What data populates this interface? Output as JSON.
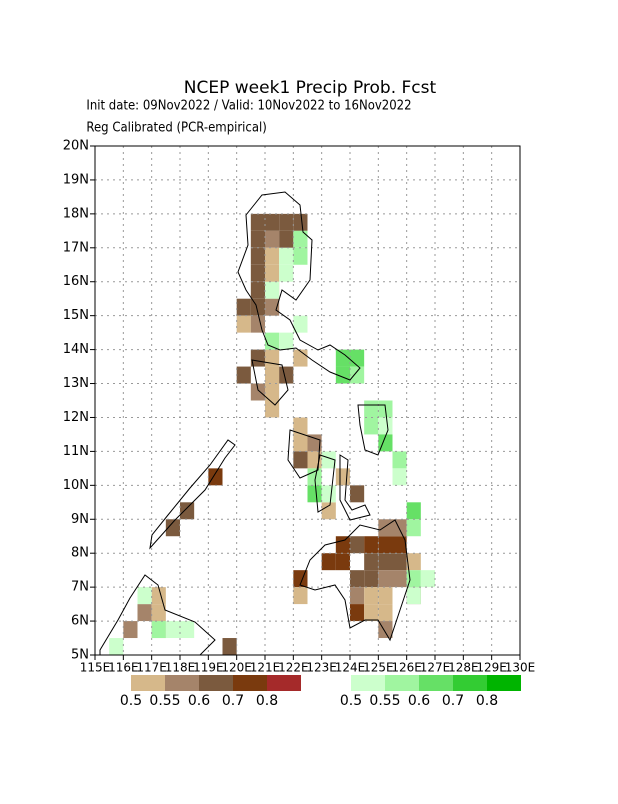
{
  "chart_data": {
    "type": "gridmap",
    "title": "NCEP week1 Precip Prob. Fcst",
    "subtitle": "Init date: 09Nov2022 / Valid: 10Nov2022 to 16Nov2022",
    "note": "Reg Calibrated (PCR-empirical)",
    "xlim": [
      115,
      130
    ],
    "ylim": [
      5,
      20
    ],
    "cell": 0.5,
    "grid": true,
    "xticks": [
      {
        "value": 115,
        "label": "115E"
      },
      {
        "value": 116,
        "label": "116E"
      },
      {
        "value": 117,
        "label": "117E"
      },
      {
        "value": 118,
        "label": "118E"
      },
      {
        "value": 119,
        "label": "119E"
      },
      {
        "value": 120,
        "label": "120E"
      },
      {
        "value": 121,
        "label": "121E"
      },
      {
        "value": 122,
        "label": "122E"
      },
      {
        "value": 123,
        "label": "123E"
      },
      {
        "value": 124,
        "label": "124E"
      },
      {
        "value": 125,
        "label": "125E"
      },
      {
        "value": 126,
        "label": "126E"
      },
      {
        "value": 127,
        "label": "127E"
      },
      {
        "value": 128,
        "label": "128E"
      },
      {
        "value": 129,
        "label": "129E"
      },
      {
        "value": 130,
        "label": "130E"
      }
    ],
    "yticks": [
      {
        "value": 5,
        "label": "5N"
      },
      {
        "value": 6,
        "label": "6N"
      },
      {
        "value": 7,
        "label": "7N"
      },
      {
        "value": 8,
        "label": "8N"
      },
      {
        "value": 9,
        "label": "9N"
      },
      {
        "value": 10,
        "label": "10N"
      },
      {
        "value": 11,
        "label": "11N"
      },
      {
        "value": 12,
        "label": "12N"
      },
      {
        "value": 13,
        "label": "13N"
      },
      {
        "value": 14,
        "label": "14N"
      },
      {
        "value": 15,
        "label": "15N"
      },
      {
        "value": 16,
        "label": "16N"
      },
      {
        "value": 17,
        "label": "17N"
      },
      {
        "value": 18,
        "label": "18N"
      },
      {
        "value": 19,
        "label": "19N"
      },
      {
        "value": 20,
        "label": "20N"
      }
    ],
    "dry": {
      "levels": [
        0.5,
        0.55,
        0.6,
        0.7,
        0.8
      ],
      "colors": [
        "#d6b88a",
        "#a5846a",
        "#7b5a3e",
        "#7a3a0e",
        "#a52a2a"
      ],
      "cells": [
        [
          120.5,
          17.5,
          0.6
        ],
        [
          121,
          17.5,
          0.6
        ],
        [
          121.5,
          17.5,
          0.6
        ],
        [
          122,
          17.5,
          0.6
        ],
        [
          120.5,
          17,
          0.6
        ],
        [
          121,
          17,
          0.55
        ],
        [
          121.5,
          17,
          0.6
        ],
        [
          120.5,
          16.5,
          0.6
        ],
        [
          121,
          16.5,
          0.5
        ],
        [
          120.5,
          16,
          0.6
        ],
        [
          121,
          16,
          0.5
        ],
        [
          120.5,
          15.5,
          0.6
        ],
        [
          121,
          15.5,
          0.5
        ],
        [
          120,
          15,
          0.6
        ],
        [
          120.5,
          15,
          0.6
        ],
        [
          121,
          15,
          0.55
        ],
        [
          120,
          14.5,
          0.5
        ],
        [
          120.5,
          14.5,
          0.55
        ],
        [
          120.5,
          13.5,
          0.6
        ],
        [
          121,
          13.5,
          0.5
        ],
        [
          122,
          13.5,
          0.5
        ],
        [
          120,
          13,
          0.6
        ],
        [
          121,
          13,
          0.5
        ],
        [
          121.5,
          13,
          0.6
        ],
        [
          120.5,
          12.5,
          0.55
        ],
        [
          121,
          12.5,
          0.5
        ],
        [
          121,
          12,
          0.5
        ],
        [
          122,
          11.5,
          0.5
        ],
        [
          122,
          11,
          0.5
        ],
        [
          122.5,
          11,
          0.55
        ],
        [
          122,
          10.5,
          0.6
        ],
        [
          122.5,
          10.5,
          0.5
        ],
        [
          123.5,
          10,
          0.5
        ],
        [
          124,
          9.5,
          0.6
        ],
        [
          123,
          9,
          0.5
        ],
        [
          119,
          10,
          0.7
        ],
        [
          118,
          9,
          0.6
        ],
        [
          117.5,
          8.5,
          0.6
        ],
        [
          123,
          7.5,
          0.7
        ],
        [
          123.5,
          7.5,
          0.7
        ],
        [
          123.5,
          8,
          0.7
        ],
        [
          124,
          8,
          0.6
        ],
        [
          124.5,
          8,
          0.7
        ],
        [
          125,
          8,
          0.7
        ],
        [
          125.5,
          8,
          0.7
        ],
        [
          124.5,
          7.5,
          0.6
        ],
        [
          125,
          7.5,
          0.6
        ],
        [
          125.5,
          7.5,
          0.6
        ],
        [
          126,
          7.5,
          0.5
        ],
        [
          124,
          7,
          0.6
        ],
        [
          124.5,
          7,
          0.6
        ],
        [
          125,
          7,
          0.55
        ],
        [
          125.5,
          7,
          0.55
        ],
        [
          124,
          6.5,
          0.55
        ],
        [
          124.5,
          6.5,
          0.5
        ],
        [
          125,
          6.5,
          0.5
        ],
        [
          124,
          6,
          0.7
        ],
        [
          124.5,
          6,
          0.5
        ],
        [
          125,
          6,
          0.5
        ],
        [
          125,
          5.5,
          0.55
        ],
        [
          126,
          6.5,
          0.55
        ],
        [
          125,
          8.5,
          0.55
        ],
        [
          125.5,
          8.5,
          0.55
        ],
        [
          122,
          7,
          0.7
        ],
        [
          122,
          6.5,
          0.5
        ],
        [
          117,
          6.5,
          0.5
        ],
        [
          116.5,
          6,
          0.55
        ],
        [
          116,
          5.5,
          0.55
        ],
        [
          117,
          6,
          0.5
        ],
        [
          117,
          5.5,
          0.5
        ],
        [
          119.5,
          5,
          0.6
        ]
      ]
    },
    "wet": {
      "levels": [
        0.5,
        0.55,
        0.6,
        0.7,
        0.8
      ],
      "colors": [
        "#ccffcc",
        "#a0f5a0",
        "#66e066",
        "#33cc33",
        "#00b400"
      ],
      "cells": [
        [
          121.5,
          16.5,
          0.5
        ],
        [
          122,
          16.5,
          0.55
        ],
        [
          122,
          17,
          0.55
        ],
        [
          121.5,
          16,
          0.5
        ],
        [
          121,
          15.5,
          0.5
        ],
        [
          121,
          14,
          0.55
        ],
        [
          121.5,
          14,
          0.5
        ],
        [
          122,
          14.5,
          0.5
        ],
        [
          123.5,
          13.5,
          0.6
        ],
        [
          124,
          13.5,
          0.6
        ],
        [
          123.5,
          13,
          0.6
        ],
        [
          124,
          13,
          0.55
        ],
        [
          124.5,
          12,
          0.55
        ],
        [
          125,
          12,
          0.55
        ],
        [
          124.5,
          11.5,
          0.55
        ],
        [
          125,
          11.5,
          0.5
        ],
        [
          125,
          11,
          0.6
        ],
        [
          125.5,
          10.5,
          0.55
        ],
        [
          125.5,
          10,
          0.5
        ],
        [
          122.5,
          10,
          0.55
        ],
        [
          123,
          10.5,
          0.5
        ],
        [
          122.5,
          9.5,
          0.6
        ],
        [
          123,
          9.5,
          0.5
        ],
        [
          126,
          9,
          0.6
        ],
        [
          126,
          8.5,
          0.55
        ],
        [
          126,
          6.5,
          0.5
        ],
        [
          126,
          7,
          0.55
        ],
        [
          126.5,
          7,
          0.5
        ],
        [
          116.5,
          6.5,
          0.5
        ],
        [
          117,
          5.5,
          0.55
        ],
        [
          117.5,
          5.5,
          0.5
        ],
        [
          118,
          5.5,
          0.5
        ],
        [
          115.5,
          5,
          0.5
        ]
      ]
    }
  }
}
